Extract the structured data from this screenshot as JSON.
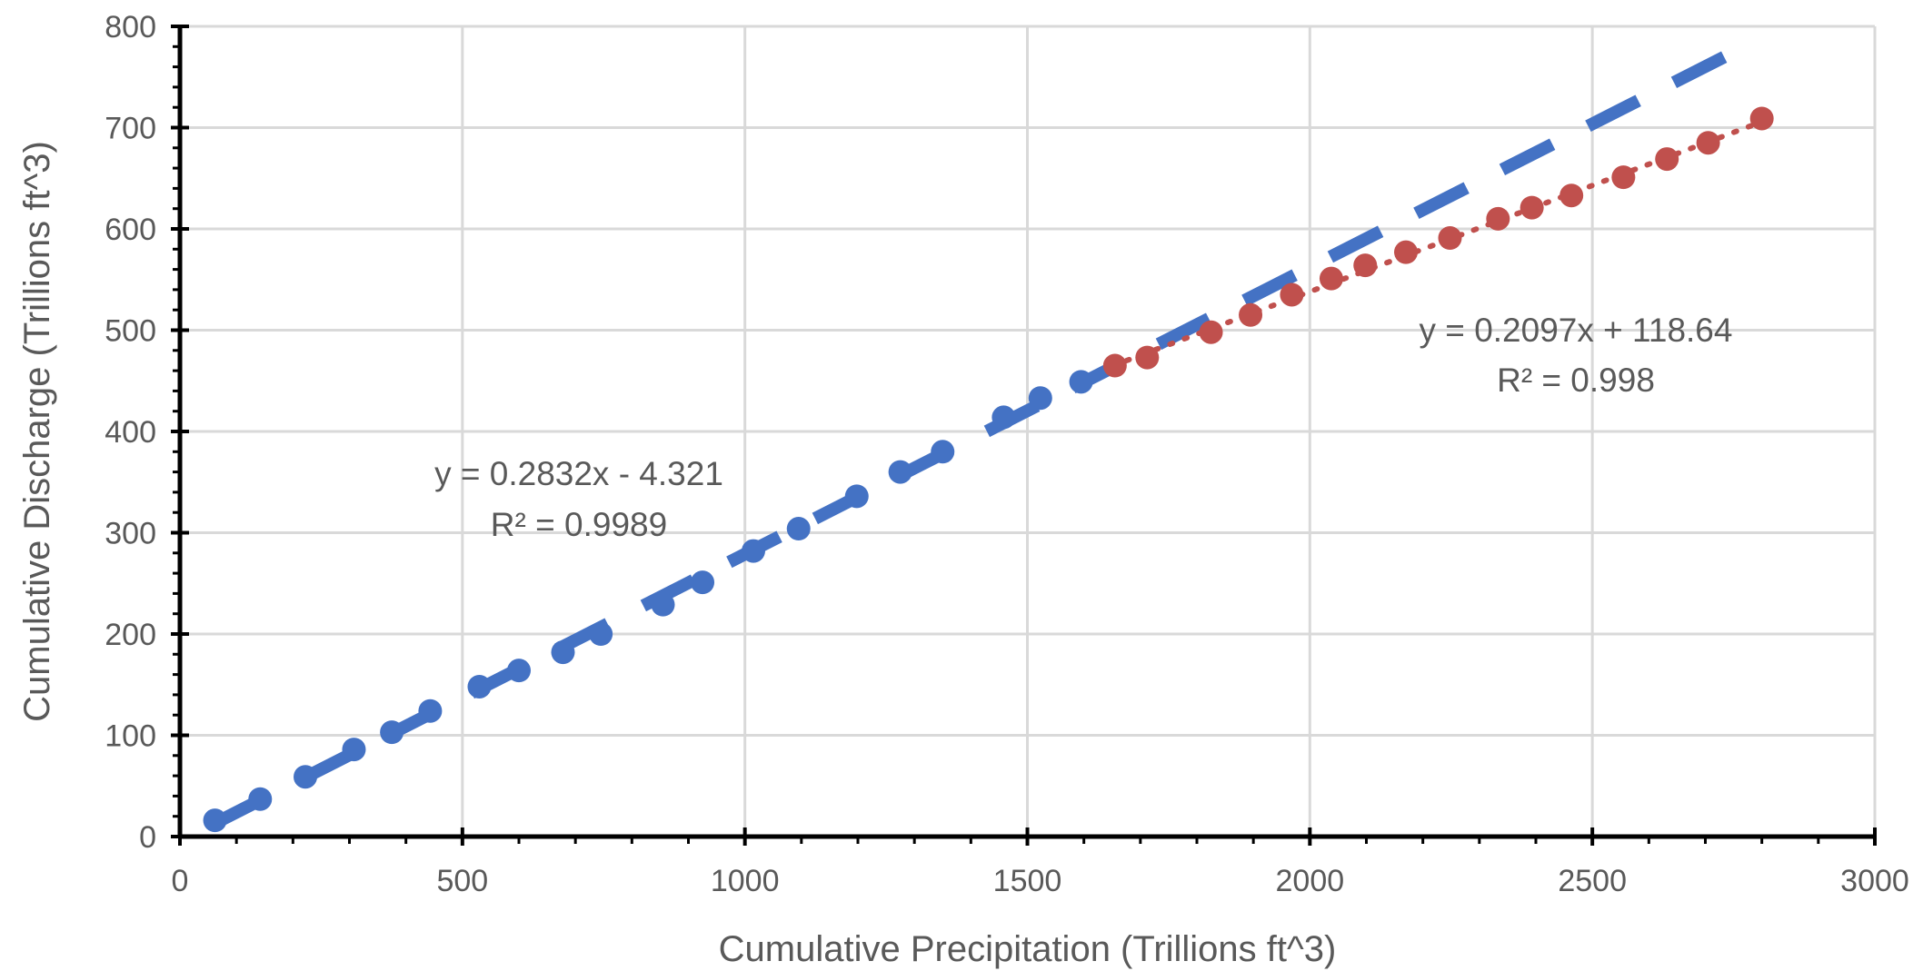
{
  "chart_data": {
    "type": "scatter",
    "title": "",
    "xlabel": "Cumulative Precipitation (Trillions ft^3)",
    "ylabel": "Cumulative Discharge (Trillions ft^3)",
    "xlim": [
      0,
      3000
    ],
    "ylim": [
      0,
      800
    ],
    "xticks": [
      0,
      500,
      1000,
      1500,
      2000,
      2500,
      3000
    ],
    "yticks": [
      0,
      100,
      200,
      300,
      400,
      500,
      600,
      700,
      800
    ],
    "grid": true,
    "legend": "none",
    "series": [
      {
        "color": "#4472C4",
        "marker": "circle",
        "points": [
          [
            62,
            16
          ],
          [
            142,
            37
          ],
          [
            222,
            59
          ],
          [
            308,
            86
          ],
          [
            375,
            103
          ],
          [
            443,
            124
          ],
          [
            530,
            148
          ],
          [
            600,
            164
          ],
          [
            678,
            182
          ],
          [
            745,
            200
          ],
          [
            855,
            229
          ],
          [
            925,
            251
          ],
          [
            1015,
            282
          ],
          [
            1095,
            304
          ],
          [
            1198,
            336
          ],
          [
            1275,
            360
          ],
          [
            1350,
            380
          ],
          [
            1458,
            414
          ],
          [
            1523,
            433
          ],
          [
            1595,
            449
          ]
        ],
        "trendline": {
          "type": "linear",
          "slope": 0.2832,
          "intercept": -4.321,
          "x_range": [
            60,
            2750
          ],
          "style": "dashed",
          "equation": "y = 0.2832x - 4.321",
          "r2": "R² = 0.9989"
        }
      },
      {
        "color": "#C0504D",
        "marker": "circle",
        "points": [
          [
            1655,
            465
          ],
          [
            1712,
            473
          ],
          [
            1825,
            498
          ],
          [
            1895,
            515
          ],
          [
            1968,
            535
          ],
          [
            2038,
            551
          ],
          [
            2098,
            564
          ],
          [
            2170,
            577
          ],
          [
            2248,
            591
          ],
          [
            2333,
            610
          ],
          [
            2393,
            621
          ],
          [
            2463,
            633
          ],
          [
            2555,
            651
          ],
          [
            2632,
            669
          ],
          [
            2705,
            685
          ],
          [
            2800,
            709
          ]
        ],
        "trendline": {
          "type": "linear",
          "slope": 0.2097,
          "intercept": 118.64,
          "x_range": [
            1650,
            2800
          ],
          "style": "dotted",
          "equation": "y = 0.2097x + 118.64",
          "r2": "R² = 0.998"
        }
      }
    ]
  }
}
